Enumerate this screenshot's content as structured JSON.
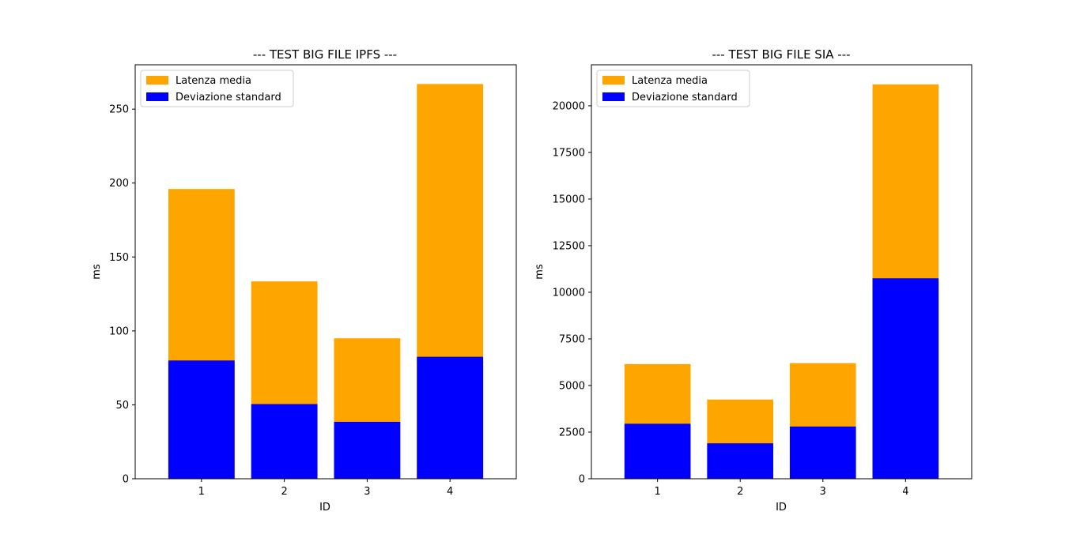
{
  "chart_data": [
    {
      "type": "bar",
      "stacked": "overlay",
      "title": "--- TEST BIG FILE IPFS ---",
      "xlabel": "ID",
      "ylabel": "ms",
      "categories": [
        "1",
        "2",
        "3",
        "4"
      ],
      "ylim": [
        0,
        280
      ],
      "yticks": [
        0,
        50,
        100,
        150,
        200,
        250
      ],
      "yticklabels": [
        "0",
        "50",
        "100",
        "150",
        "200",
        "250"
      ],
      "series": [
        {
          "name": "Latenza media",
          "color": "#FFA500",
          "values": [
            196,
            133.5,
            95,
            267
          ]
        },
        {
          "name": "Deviazione standard",
          "color": "#0000FF",
          "values": [
            80,
            50.5,
            38.5,
            82.5
          ]
        }
      ],
      "grid": false,
      "legend": "upper left"
    },
    {
      "type": "bar",
      "stacked": "overlay",
      "title": "--- TEST BIG FILE SIA ---",
      "xlabel": "ID",
      "ylabel": "ms",
      "categories": [
        "1",
        "2",
        "3",
        "4"
      ],
      "ylim": [
        0,
        22200
      ],
      "yticks": [
        0,
        2500,
        5000,
        7500,
        10000,
        12500,
        15000,
        17500,
        20000
      ],
      "yticklabels": [
        "0",
        "2500",
        "5000",
        "7500",
        "10000",
        "12500",
        "15000",
        "17500",
        "20000"
      ],
      "series": [
        {
          "name": "Latenza media",
          "color": "#FFA500",
          "values": [
            6150,
            4250,
            6200,
            21150
          ]
        },
        {
          "name": "Deviazione standard",
          "color": "#0000FF",
          "values": [
            2950,
            1900,
            2800,
            10750
          ]
        }
      ],
      "grid": false,
      "legend": "upper left"
    }
  ]
}
